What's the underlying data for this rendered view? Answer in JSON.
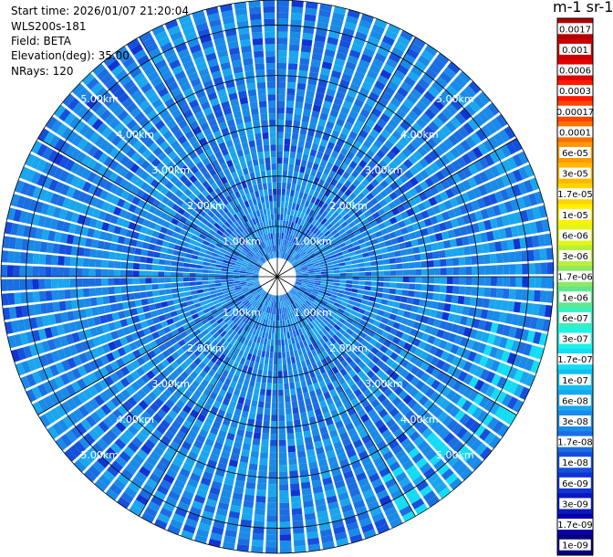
{
  "header": {
    "start_time": "Start time: 2026/01/07 21:20:04",
    "device": "WLS200s-181",
    "field": "Field: BETA",
    "elevation": "Elevation(deg): 35.00",
    "nrays": "NRays: 120"
  },
  "colorbar": {
    "title": "m-1 sr-1",
    "levels": [
      {
        "label": "0.0017",
        "color": "#b40000"
      },
      {
        "label": "0.001",
        "color": "#cc0000"
      },
      {
        "label": "0.0006",
        "color": "#e00000"
      },
      {
        "label": "0.0003",
        "color": "#ff1a00"
      },
      {
        "label": "0.00017",
        "color": "#ff4500"
      },
      {
        "label": "0.0001",
        "color": "#ff7000"
      },
      {
        "label": "6e-05",
        "color": "#ff9a00"
      },
      {
        "label": "3e-05",
        "color": "#ffb800"
      },
      {
        "label": "1.7e-05",
        "color": "#ffd400"
      },
      {
        "label": "1e-05",
        "color": "#fff000"
      },
      {
        "label": "6e-06",
        "color": "#e2f51a"
      },
      {
        "label": "3e-06",
        "color": "#b8ef3a"
      },
      {
        "label": "1.7e-06",
        "color": "#8ee866"
      },
      {
        "label": "1e-06",
        "color": "#5fe890"
      },
      {
        "label": "6e-07",
        "color": "#36f0c0"
      },
      {
        "label": "3e-07",
        "color": "#1cf2e6"
      },
      {
        "label": "1.7e-07",
        "color": "#14dcf5"
      },
      {
        "label": "1e-07",
        "color": "#10c0f2"
      },
      {
        "label": "6e-08",
        "color": "#1aa6ee"
      },
      {
        "label": "3e-08",
        "color": "#1a8ae8"
      },
      {
        "label": "1.7e-08",
        "color": "#1a6ee2"
      },
      {
        "label": "1e-08",
        "color": "#1450dc"
      },
      {
        "label": "6e-09",
        "color": "#0f34d2"
      },
      {
        "label": "3e-09",
        "color": "#0a18c0"
      },
      {
        "label": "1.7e-09",
        "color": "#0800a6"
      },
      {
        "label": "1e-09",
        "color": "#06007a"
      }
    ]
  },
  "chart_data": {
    "type": "heatmap",
    "projection": "polar (PPI scan)",
    "field": "BETA",
    "elevation_deg": 35.0,
    "n_rays": 120,
    "max_range_km": 5.5,
    "range_rings_km": [
      1,
      2,
      3,
      4,
      5
    ],
    "range_labels": [
      "1.00km",
      "2.00km",
      "3.00km",
      "4.00km",
      "5.00km"
    ],
    "spoke_angles_deg": [
      0,
      30,
      60,
      90,
      120,
      150,
      180,
      210,
      240,
      270,
      300,
      330
    ],
    "color_scale": "log",
    "dominant_range_values": "mostly 1e-08 to 6e-08 (blue), higher near 1.7e-07 at the east-southeast edge"
  }
}
